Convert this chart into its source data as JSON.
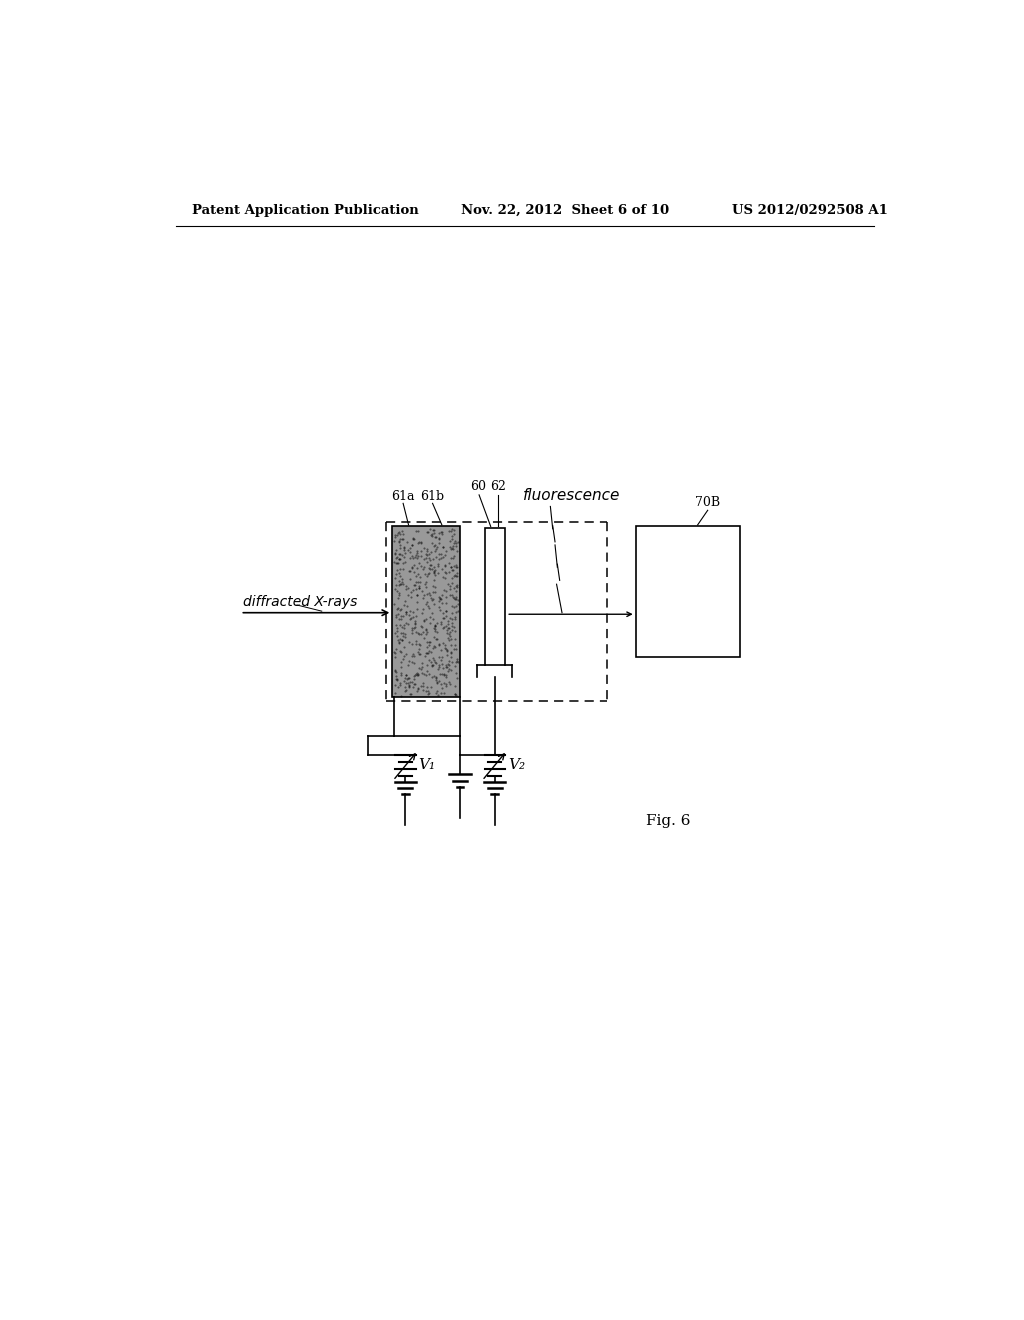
{
  "bg_color": "#ffffff",
  "header_left": "Patent Application Publication",
  "header_mid": "Nov. 22, 2012  Sheet 6 of 10",
  "header_right": "US 2012/0292508 A1",
  "fig_label": "Fig. 6"
}
